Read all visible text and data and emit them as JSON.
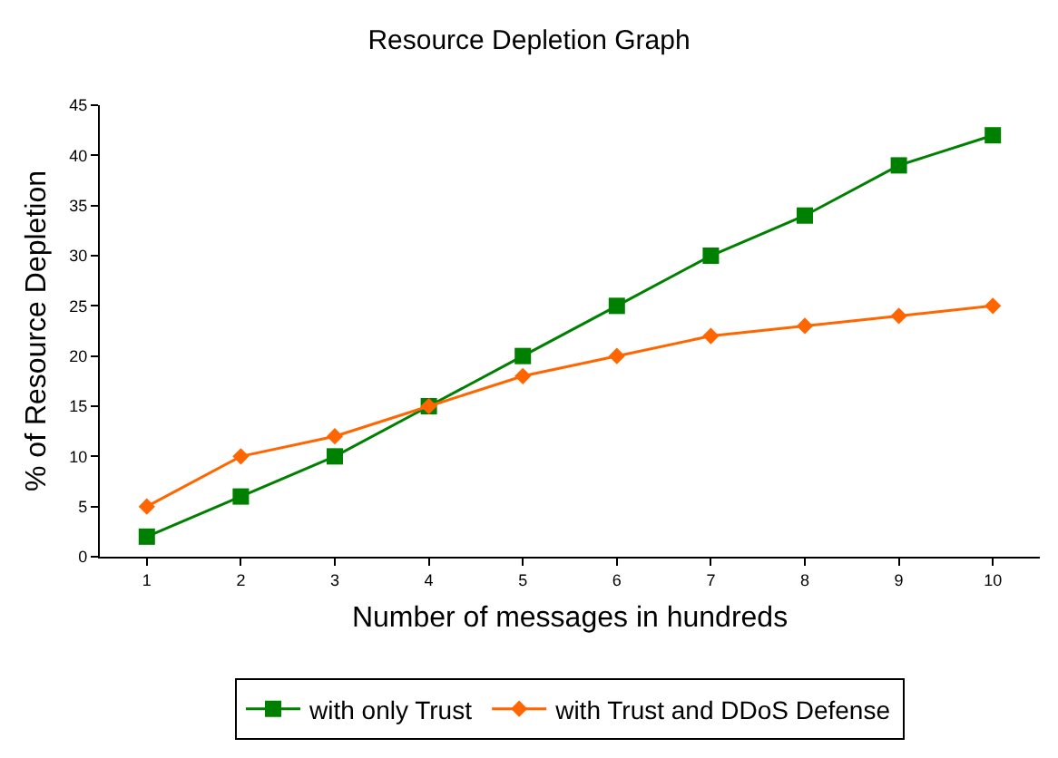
{
  "chart_data": {
    "type": "line",
    "title": "Resource Depletion Graph",
    "xlabel": "Number of messages in hundreds",
    "ylabel": "% of Resource Depletion",
    "categories": [
      "1",
      "2",
      "3",
      "4",
      "5",
      "6",
      "7",
      "8",
      "9",
      "10"
    ],
    "series": [
      {
        "name": "with only Trust",
        "color": "#008000",
        "marker": "square",
        "values": [
          2,
          6,
          10,
          15,
          20,
          25,
          30,
          34,
          39,
          42
        ]
      },
      {
        "name": "with Trust and DDoS Defense",
        "color": "#ff6600",
        "marker": "diamond",
        "values": [
          5,
          10,
          12,
          15,
          18,
          20,
          22,
          23,
          24,
          25
        ]
      }
    ],
    "ylim": [
      0,
      45
    ],
    "yticks": [
      0,
      5,
      10,
      15,
      20,
      25,
      30,
      35,
      40,
      45
    ],
    "grid": false,
    "legend": "bottom",
    "line_style": "solid"
  }
}
